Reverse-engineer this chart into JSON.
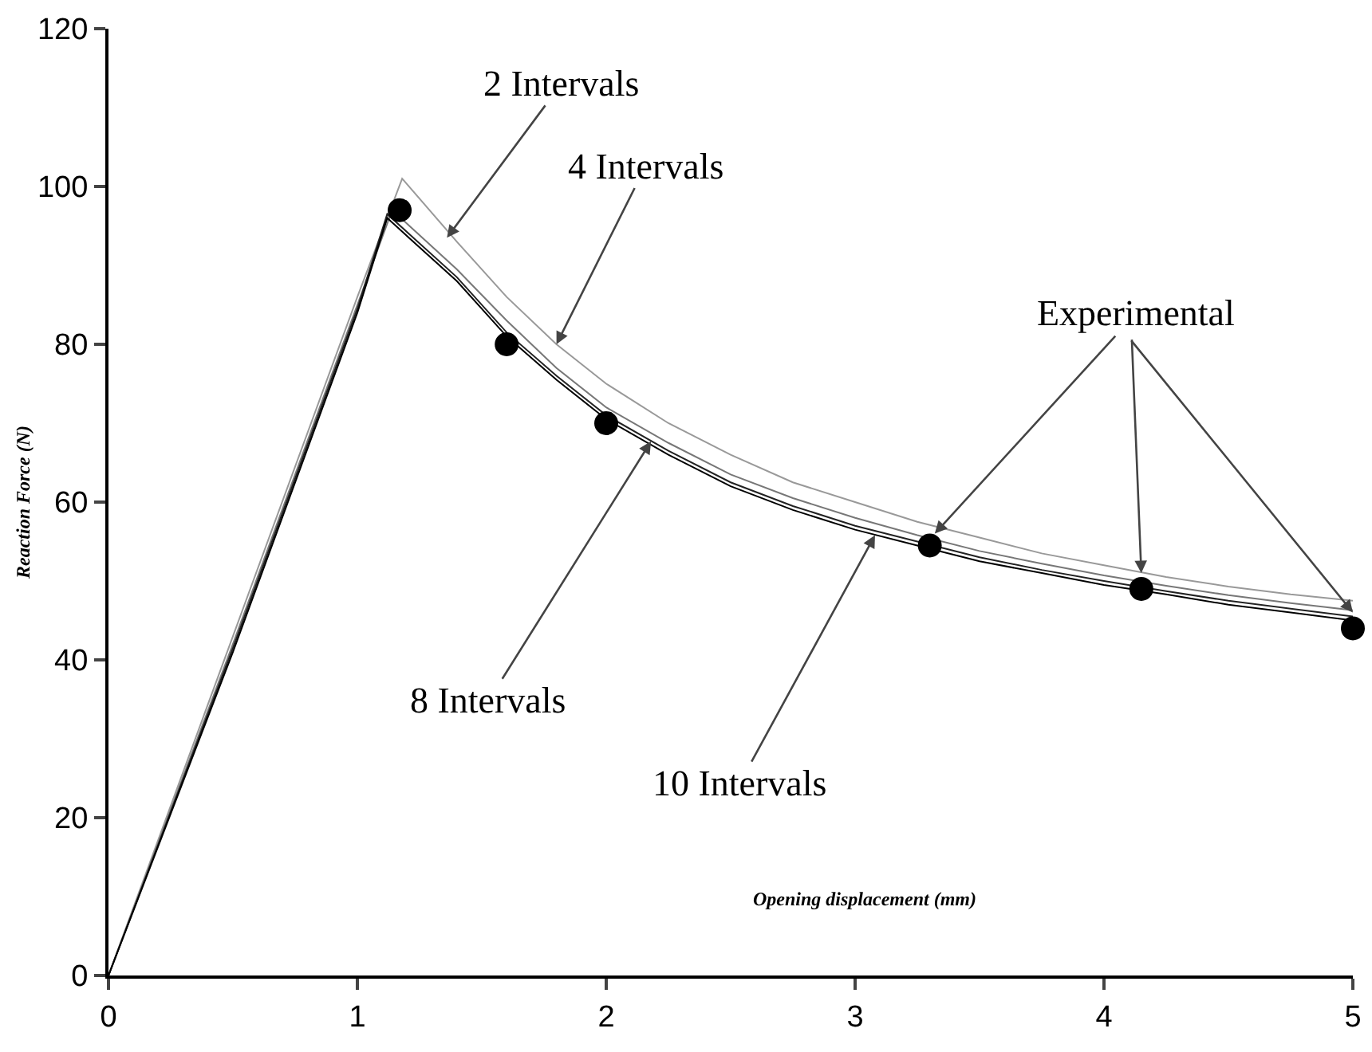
{
  "chart_data": {
    "type": "line",
    "xlabel": "Opening displacement (mm)",
    "ylabel": "Reaction Force (N)",
    "xlim": [
      0,
      5
    ],
    "ylim": [
      0,
      120
    ],
    "xticks": [
      0,
      1,
      2,
      3,
      4,
      5
    ],
    "yticks": [
      0,
      20,
      40,
      60,
      80,
      100,
      120
    ],
    "grid": false,
    "line_style": "solid",
    "series": [
      {
        "color": "#999999",
        "marker": "none",
        "x": [
          0,
          0.5,
          1.0,
          1.18,
          1.4,
          1.6,
          1.8,
          2.0,
          2.25,
          2.5,
          2.75,
          3.0,
          3.25,
          3.5,
          3.75,
          4.0,
          4.25,
          4.5,
          4.75,
          5.0
        ],
        "values": [
          0,
          43,
          86,
          101,
          93,
          86,
          80,
          75,
          70,
          66,
          62.5,
          60,
          57.5,
          55.5,
          53.5,
          52,
          50.5,
          49.3,
          48.3,
          47.5
        ]
      },
      {
        "color": "#777777",
        "marker": "none",
        "x": [
          0,
          0.5,
          1.0,
          1.14,
          1.4,
          1.6,
          1.8,
          2.0,
          2.25,
          2.5,
          2.75,
          3.0,
          3.25,
          3.5,
          3.75,
          4.0,
          4.25,
          4.5,
          4.75,
          5.0
        ],
        "values": [
          0,
          42,
          85,
          97,
          89.5,
          83,
          77,
          72,
          67.5,
          63.5,
          60.5,
          58,
          55.8,
          53.8,
          52.2,
          50.7,
          49.4,
          48.2,
          47.2,
          46.3
        ]
      },
      {
        "color": "#222222",
        "marker": "none",
        "x": [
          0,
          0.5,
          1.0,
          1.12,
          1.4,
          1.6,
          1.8,
          2.0,
          2.25,
          2.5,
          2.75,
          3.0,
          3.25,
          3.5,
          3.75,
          4.0,
          4.25,
          4.5,
          4.75,
          5.0
        ],
        "values": [
          0,
          41.5,
          84.5,
          96.5,
          88.5,
          81.5,
          76,
          71,
          66.5,
          62.5,
          59.5,
          57,
          55,
          53,
          51.4,
          50,
          48.7,
          47.5,
          46.5,
          45.5
        ]
      },
      {
        "color": "#000000",
        "marker": "none",
        "x": [
          0,
          0.5,
          1.0,
          1.12,
          1.4,
          1.6,
          1.8,
          2.0,
          2.25,
          2.5,
          2.75,
          3.0,
          3.25,
          3.5,
          3.75,
          4.0,
          4.25,
          4.5,
          4.75,
          5.0
        ],
        "values": [
          0,
          41,
          84,
          96,
          88,
          81,
          75.5,
          70.5,
          66,
          62,
          59,
          56.5,
          54.5,
          52.5,
          51,
          49.5,
          48.3,
          47,
          46,
          45
        ]
      },
      {
        "type": "scatter",
        "color": "#000000",
        "marker": "circle",
        "x": [
          1.17,
          1.6,
          2.0,
          3.3,
          4.15,
          5.0
        ],
        "values": [
          97,
          80,
          70,
          54.5,
          49,
          44
        ]
      }
    ],
    "annotations": [
      {
        "text": "2 Intervals",
        "x": 1.36,
        "y": 93.5
      },
      {
        "text": "4 Intervals",
        "x": 1.8,
        "y": 80
      },
      {
        "text": "8 Intervals",
        "x": 2.18,
        "y": 67.7
      },
      {
        "text": "10 Intervals",
        "x": 3.08,
        "y": 55.8
      },
      {
        "text": "Experimental",
        "x": 3.32,
        "y": 56
      }
    ]
  }
}
